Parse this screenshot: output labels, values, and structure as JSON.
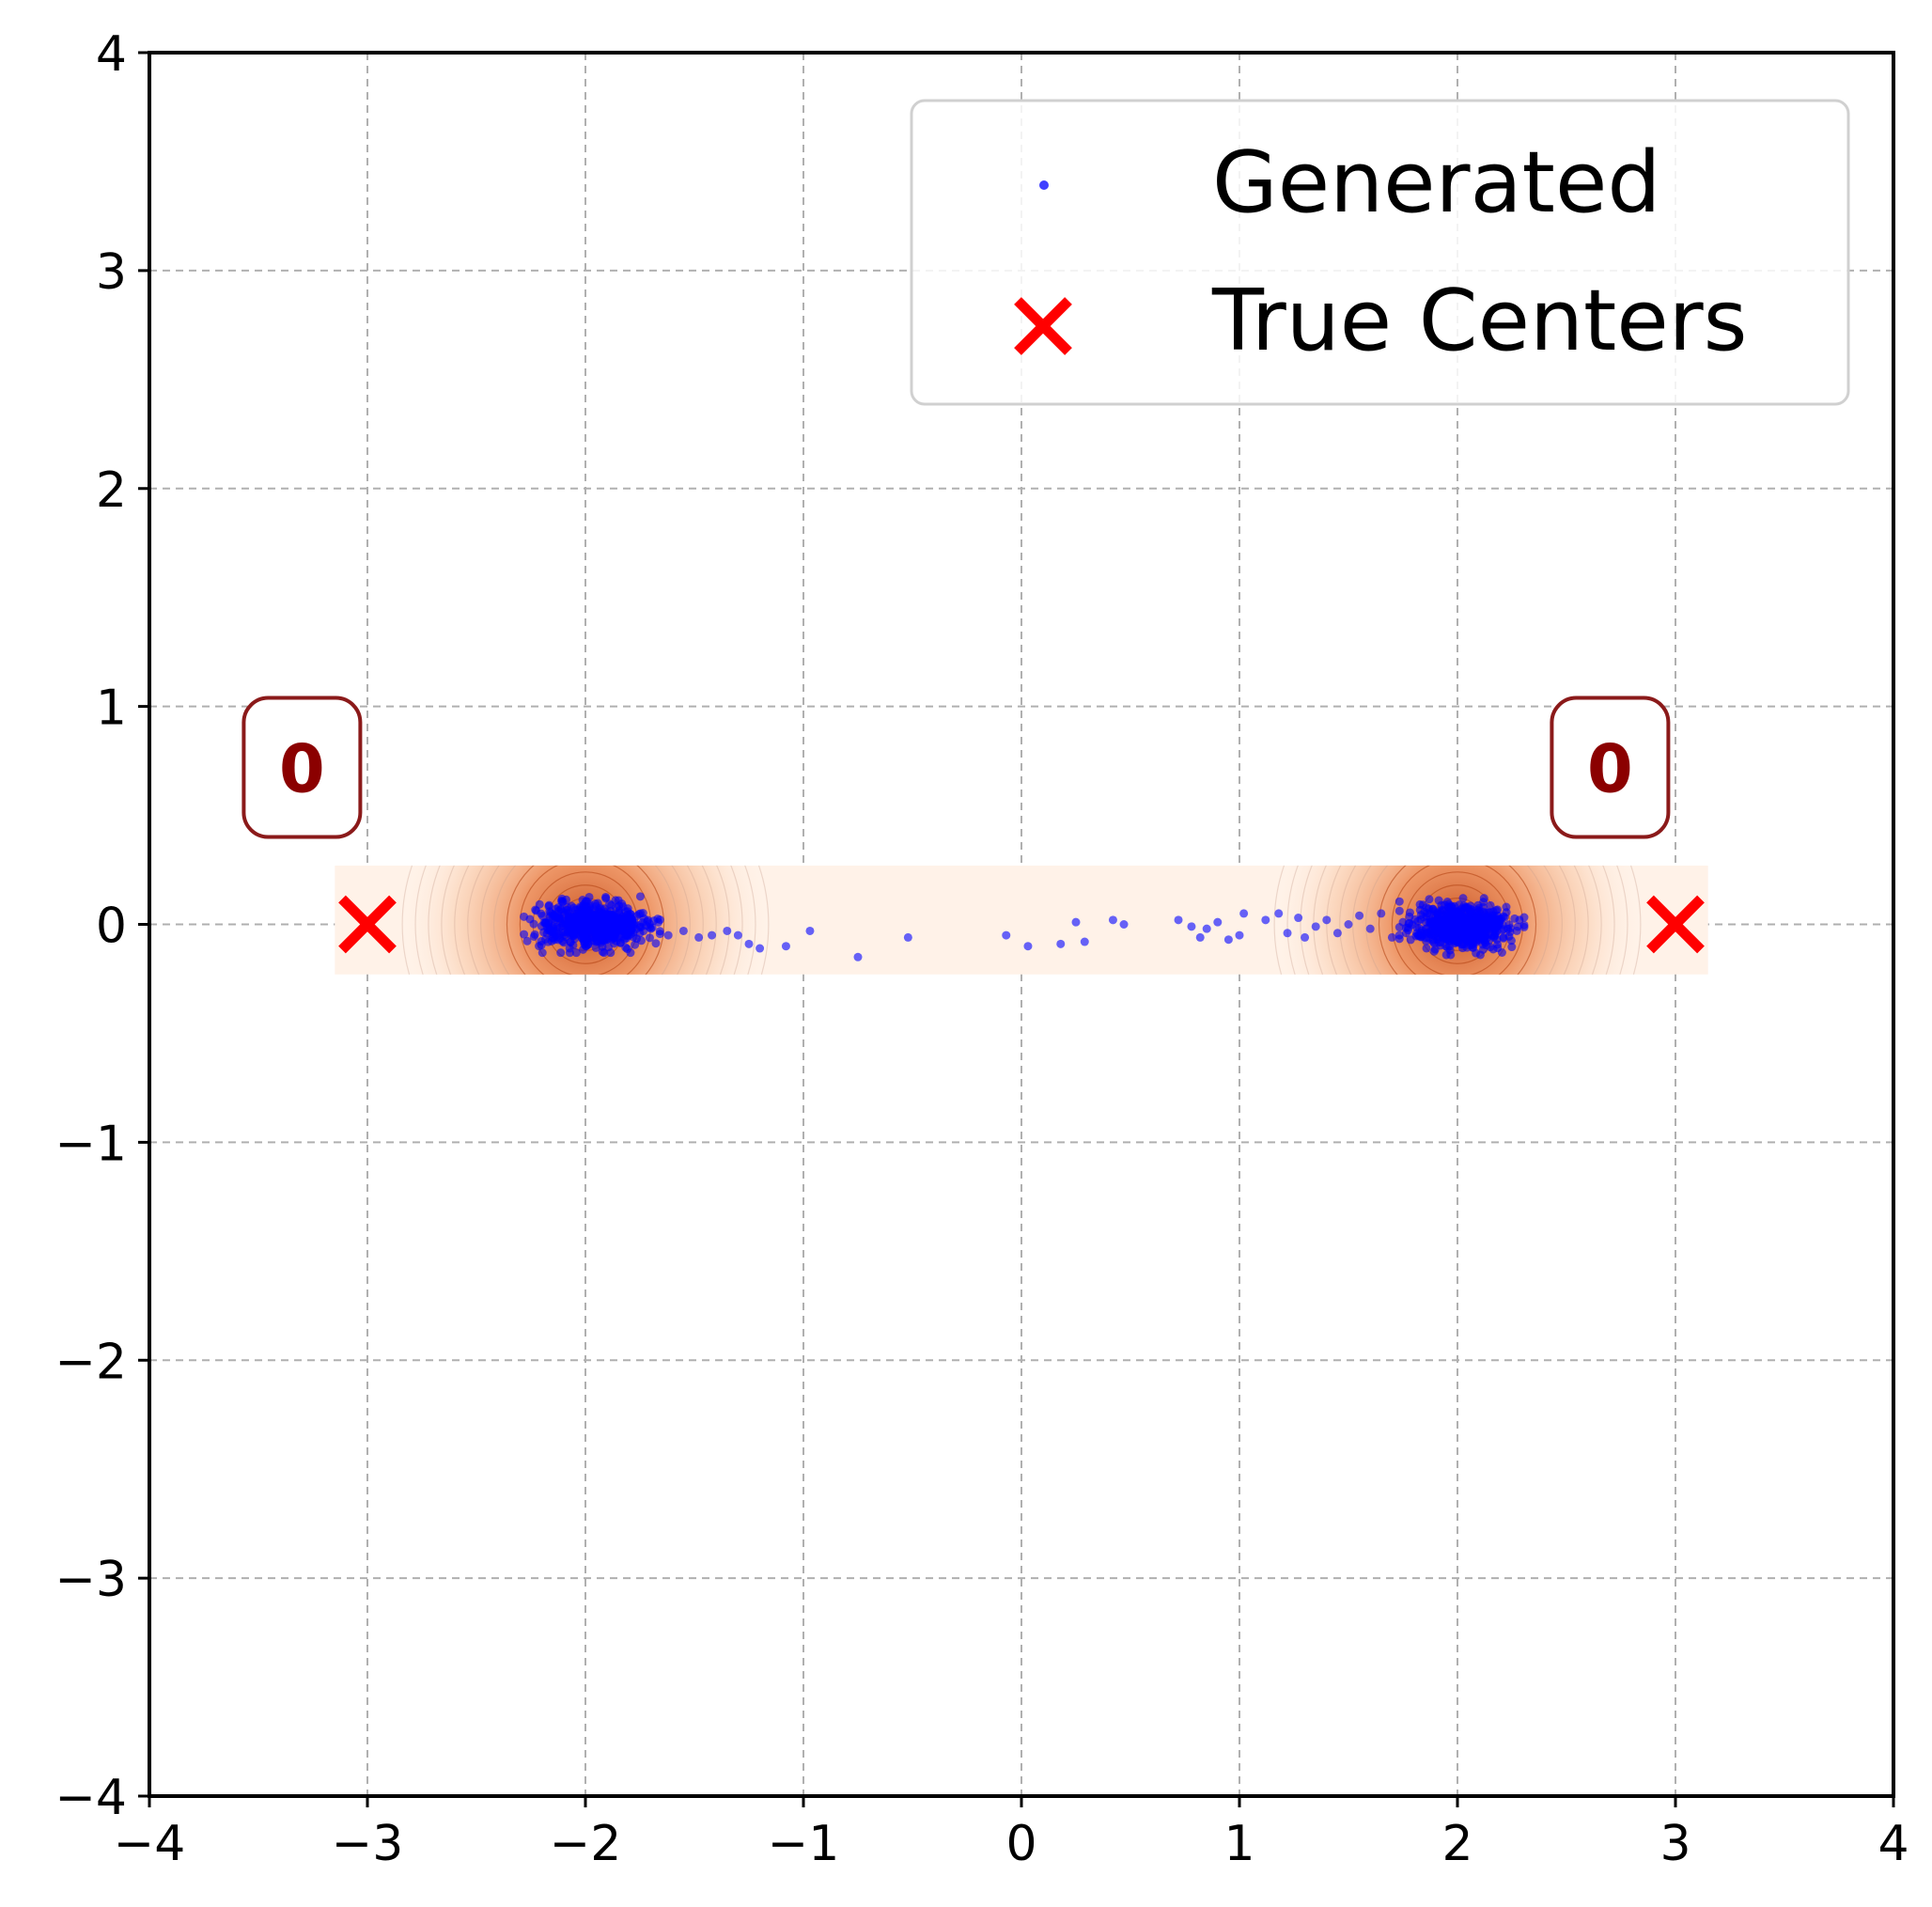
{
  "chart_data": {
    "type": "scatter",
    "title": "",
    "xlabel": "",
    "ylabel": "",
    "xlim": [
      -4,
      4
    ],
    "ylim": [
      -4,
      4
    ],
    "xticks": [
      -4,
      -3,
      -2,
      -1,
      0,
      1,
      2,
      3,
      4
    ],
    "yticks": [
      -4,
      -3,
      -2,
      -1,
      0,
      1,
      2,
      3,
      4
    ],
    "grid": true,
    "legend_position": "upper-right",
    "density_background": {
      "x_range": [
        -3.15,
        3.15
      ],
      "y_range": [
        -0.23,
        0.27
      ],
      "modes": [
        [
          -2.0,
          0.0
        ],
        [
          2.0,
          0.0
        ]
      ],
      "color": "#f08040"
    },
    "series": [
      {
        "name": "Generated",
        "marker": "dot",
        "color": "#0000ff",
        "clusters": [
          {
            "center": [
              -1.97,
              0.0
            ],
            "spread": [
              0.12,
              0.05
            ],
            "count": 600
          },
          {
            "center": [
              2.02,
              -0.01
            ],
            "spread": [
              0.11,
              0.05
            ],
            "count": 600
          }
        ],
        "points": [
          [
            -1.75,
            -0.04
          ],
          [
            -1.7,
            -0.02
          ],
          [
            -1.62,
            -0.05
          ],
          [
            -1.55,
            -0.03
          ],
          [
            -1.48,
            -0.06
          ],
          [
            -1.42,
            -0.05
          ],
          [
            -1.35,
            -0.03
          ],
          [
            -1.3,
            -0.05
          ],
          [
            -1.25,
            -0.09
          ],
          [
            -1.2,
            -0.11
          ],
          [
            -1.08,
            -0.1
          ],
          [
            -0.97,
            -0.03
          ],
          [
            -0.75,
            -0.15
          ],
          [
            -0.52,
            -0.06
          ],
          [
            -0.07,
            -0.05
          ],
          [
            0.03,
            -0.1
          ],
          [
            0.18,
            -0.09
          ],
          [
            0.25,
            0.01
          ],
          [
            0.29,
            -0.08
          ],
          [
            0.42,
            0.02
          ],
          [
            0.47,
            0.0
          ],
          [
            0.72,
            0.02
          ],
          [
            0.78,
            -0.01
          ],
          [
            0.82,
            -0.06
          ],
          [
            0.85,
            -0.02
          ],
          [
            0.9,
            0.01
          ],
          [
            0.95,
            -0.07
          ],
          [
            1.0,
            -0.05
          ],
          [
            1.02,
            0.05
          ],
          [
            1.12,
            0.02
          ],
          [
            1.18,
            0.05
          ],
          [
            1.22,
            -0.04
          ],
          [
            1.27,
            0.03
          ],
          [
            1.3,
            -0.06
          ],
          [
            1.35,
            -0.01
          ],
          [
            1.4,
            0.02
          ],
          [
            1.45,
            -0.04
          ],
          [
            1.5,
            0.0
          ],
          [
            1.55,
            0.04
          ],
          [
            1.6,
            -0.02
          ],
          [
            1.65,
            0.05
          ],
          [
            1.7,
            -0.06
          ],
          [
            1.75,
            0.01
          ]
        ]
      },
      {
        "name": "True Centers",
        "marker": "x",
        "color": "#ff0000",
        "points": [
          [
            -3.0,
            0.0
          ],
          [
            3.0,
            0.0
          ]
        ]
      }
    ],
    "annotations": [
      {
        "text": "0",
        "x": -3.3,
        "y": 0.72
      },
      {
        "text": "0",
        "x": 2.7,
        "y": 0.72
      }
    ]
  }
}
